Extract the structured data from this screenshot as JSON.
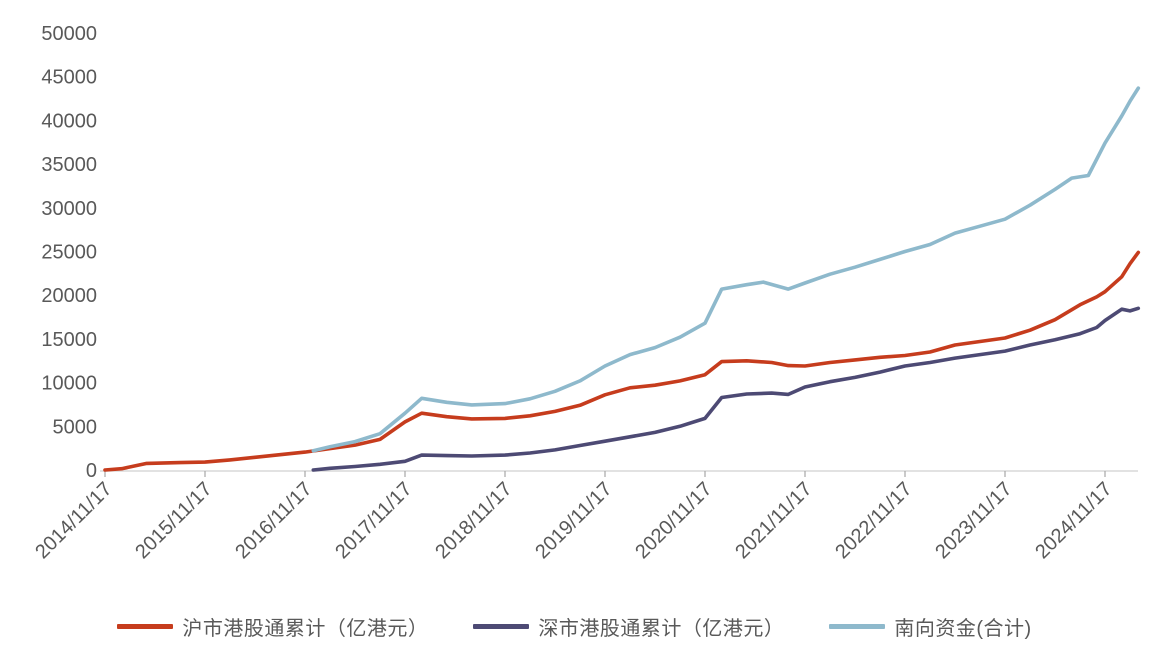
{
  "chart_data": {
    "type": "line",
    "title": "",
    "xlabel": "",
    "ylabel": "",
    "background": "#ffffff",
    "grid": false,
    "legend_position": "bottom",
    "y_axis": {
      "range": [
        0,
        50000
      ],
      "ticks": [
        0,
        5000,
        10000,
        15000,
        20000,
        25000,
        30000,
        35000,
        40000,
        45000,
        50000
      ]
    },
    "x_axis": {
      "tick_labels": [
        "2014/11/17",
        "2015/11/17",
        "2016/11/17",
        "2017/11/17",
        "2018/11/17",
        "2019/11/17",
        "2020/11/17",
        "2021/11/17",
        "2022/11/17",
        "2023/11/17",
        "2024/11/17"
      ],
      "label_rotation_deg": -45
    },
    "colors": {
      "axis_line": "#d9d9d9",
      "tick_mark": "#a6a6a6",
      "tick_text": "#595959"
    },
    "series": [
      {
        "id": "hu",
        "name": "沪市港股通累计（亿港元）",
        "color": "#c63c1d",
        "points": [
          [
            "2014/11",
            0
          ],
          [
            "2015/01",
            150
          ],
          [
            "2015/04",
            750
          ],
          [
            "2015/08",
            850
          ],
          [
            "2015/11",
            900
          ],
          [
            "2016/02",
            1150
          ],
          [
            "2016/05",
            1450
          ],
          [
            "2016/08",
            1750
          ],
          [
            "2016/11",
            2050
          ],
          [
            "2017/02",
            2450
          ],
          [
            "2017/05",
            2850
          ],
          [
            "2017/08",
            3500
          ],
          [
            "2017/11",
            5500
          ],
          [
            "2018/01",
            6500
          ],
          [
            "2018/04",
            6100
          ],
          [
            "2018/07",
            5850
          ],
          [
            "2018/11",
            5900
          ],
          [
            "2019/02",
            6200
          ],
          [
            "2019/05",
            6700
          ],
          [
            "2019/08",
            7400
          ],
          [
            "2019/11",
            8600
          ],
          [
            "2020/02",
            9400
          ],
          [
            "2020/05",
            9700
          ],
          [
            "2020/08",
            10200
          ],
          [
            "2020/11",
            10900
          ],
          [
            "2021/01",
            12400
          ],
          [
            "2021/04",
            12500
          ],
          [
            "2021/07",
            12300
          ],
          [
            "2021/09",
            11950
          ],
          [
            "2021/11",
            11900
          ],
          [
            "2022/02",
            12300
          ],
          [
            "2022/05",
            12600
          ],
          [
            "2022/08",
            12900
          ],
          [
            "2022/11",
            13100
          ],
          [
            "2023/02",
            13500
          ],
          [
            "2023/05",
            14300
          ],
          [
            "2023/08",
            14700
          ],
          [
            "2023/11",
            15100
          ],
          [
            "2024/02",
            16000
          ],
          [
            "2024/05",
            17200
          ],
          [
            "2024/08",
            18900
          ],
          [
            "2024/10",
            19800
          ],
          [
            "2024/11",
            20400
          ],
          [
            "2025/01",
            22100
          ],
          [
            "2025/02",
            23600
          ],
          [
            "2025/03",
            24900
          ]
        ]
      },
      {
        "id": "shen",
        "name": "深市港股通累计（亿港元）",
        "color": "#4d4a74",
        "points": [
          [
            "2016/12",
            0
          ],
          [
            "2017/02",
            200
          ],
          [
            "2017/05",
            400
          ],
          [
            "2017/08",
            650
          ],
          [
            "2017/11",
            1000
          ],
          [
            "2018/01",
            1700
          ],
          [
            "2018/04",
            1650
          ],
          [
            "2018/07",
            1600
          ],
          [
            "2018/11",
            1700
          ],
          [
            "2019/02",
            1950
          ],
          [
            "2019/05",
            2300
          ],
          [
            "2019/08",
            2800
          ],
          [
            "2019/11",
            3300
          ],
          [
            "2020/02",
            3800
          ],
          [
            "2020/05",
            4300
          ],
          [
            "2020/08",
            5000
          ],
          [
            "2020/11",
            5900
          ],
          [
            "2021/01",
            8300
          ],
          [
            "2021/04",
            8700
          ],
          [
            "2021/07",
            8800
          ],
          [
            "2021/09",
            8650
          ],
          [
            "2021/11",
            9500
          ],
          [
            "2022/02",
            10100
          ],
          [
            "2022/05",
            10600
          ],
          [
            "2022/08",
            11200
          ],
          [
            "2022/11",
            11900
          ],
          [
            "2023/02",
            12300
          ],
          [
            "2023/05",
            12800
          ],
          [
            "2023/08",
            13200
          ],
          [
            "2023/11",
            13600
          ],
          [
            "2024/02",
            14300
          ],
          [
            "2024/05",
            14900
          ],
          [
            "2024/08",
            15600
          ],
          [
            "2024/10",
            16300
          ],
          [
            "2024/11",
            17100
          ],
          [
            "2025/01",
            18400
          ],
          [
            "2025/02",
            18200
          ],
          [
            "2025/03",
            18500
          ]
        ]
      },
      {
        "id": "total",
        "name": "南向资金(合计)",
        "color": "#8eb9cc",
        "points": [
          [
            "2016/12",
            2200
          ],
          [
            "2017/02",
            2650
          ],
          [
            "2017/05",
            3250
          ],
          [
            "2017/08",
            4150
          ],
          [
            "2017/11",
            6500
          ],
          [
            "2018/01",
            8200
          ],
          [
            "2018/04",
            7750
          ],
          [
            "2018/07",
            7450
          ],
          [
            "2018/11",
            7600
          ],
          [
            "2019/02",
            8150
          ],
          [
            "2019/05",
            9000
          ],
          [
            "2019/08",
            10200
          ],
          [
            "2019/11",
            11900
          ],
          [
            "2020/02",
            13200
          ],
          [
            "2020/05",
            14000
          ],
          [
            "2020/08",
            15200
          ],
          [
            "2020/11",
            16800
          ],
          [
            "2021/01",
            20700
          ],
          [
            "2021/04",
            21200
          ],
          [
            "2021/06",
            21500
          ],
          [
            "2021/09",
            20700
          ],
          [
            "2021/11",
            21400
          ],
          [
            "2022/02",
            22400
          ],
          [
            "2022/05",
            23200
          ],
          [
            "2022/08",
            24100
          ],
          [
            "2022/11",
            25000
          ],
          [
            "2023/02",
            25800
          ],
          [
            "2023/05",
            27100
          ],
          [
            "2023/08",
            27900
          ],
          [
            "2023/11",
            28700
          ],
          [
            "2024/02",
            30300
          ],
          [
            "2024/05",
            32100
          ],
          [
            "2024/07",
            33400
          ],
          [
            "2024/09",
            33700
          ],
          [
            "2024/11",
            37400
          ],
          [
            "2025/01",
            40500
          ],
          [
            "2025/02",
            42200
          ],
          [
            "2025/03",
            43700
          ]
        ]
      }
    ]
  }
}
